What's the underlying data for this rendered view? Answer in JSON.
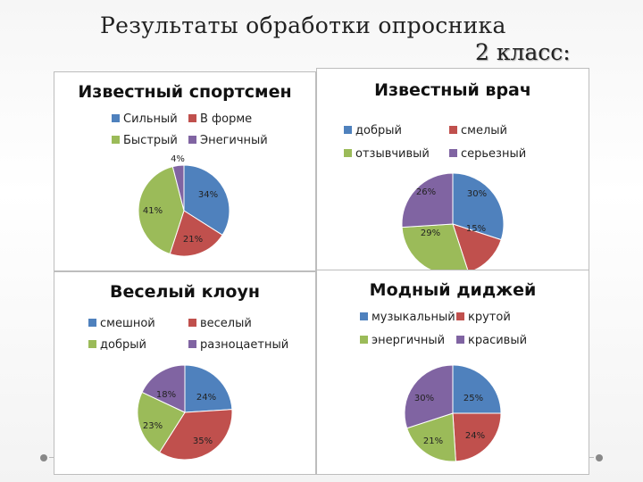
{
  "page": {
    "title": "Результаты обработки опросника",
    "subtitle": "2 класс:"
  },
  "colors": [
    "#4F81BD",
    "#C0504D",
    "#9BBB59",
    "#8064A2"
  ],
  "chart_data": [
    {
      "type": "pie",
      "title": "Известный спортсмен",
      "categories": [
        "Сильный",
        "В форме",
        "Быстрый",
        "Энегичный"
      ],
      "values": [
        34,
        21,
        41,
        4
      ],
      "labels": [
        "34%",
        "21%",
        "41%",
        "4%"
      ]
    },
    {
      "type": "pie",
      "title": "Известный врач",
      "categories": [
        "добрый",
        "смелый",
        "отзывчивый",
        "серьезный"
      ],
      "values": [
        30,
        15,
        29,
        26
      ],
      "labels": [
        "30%",
        "15%",
        "29%",
        "26%"
      ]
    },
    {
      "type": "pie",
      "title": "Веселый клоун",
      "categories": [
        "смешной",
        "веселый",
        "добрый",
        "разноцаетный"
      ],
      "values": [
        24,
        35,
        23,
        18
      ],
      "labels": [
        "24%",
        "35%",
        "23%",
        "18%"
      ]
    },
    {
      "type": "pie",
      "title": "Модный диджей",
      "categories": [
        "музыкальный",
        "крутой",
        "энергичный",
        "красивый"
      ],
      "values": [
        25,
        24,
        21,
        30
      ],
      "labels": [
        "25%",
        "24%",
        "21%",
        "30%"
      ]
    }
  ]
}
